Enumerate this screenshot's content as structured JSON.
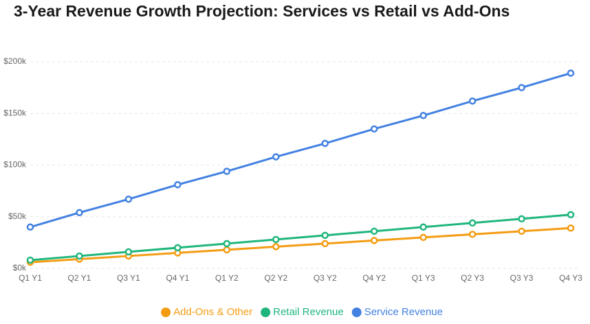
{
  "chart_data": {
    "type": "line",
    "title": "3-Year Revenue Growth Projection: Services vs Retail vs Add-Ons",
    "categories": [
      "Q1 Y1",
      "Q2 Y1",
      "Q3 Y1",
      "Q4 Y1",
      "Q1 Y2",
      "Q2 Y2",
      "Q3 Y2",
      "Q4 Y2",
      "Q1 Y3",
      "Q2 Y3",
      "Q3 Y3",
      "Q4 Y3"
    ],
    "series": [
      {
        "name": "Add-Ons & Other",
        "color": "#f39c12",
        "values": [
          6,
          9,
          12,
          15,
          18,
          21,
          24,
          27,
          30,
          33,
          36,
          39
        ]
      },
      {
        "name": "Retail Revenue",
        "color": "#1fb67d",
        "values": [
          8,
          12,
          16,
          20,
          24,
          28,
          32,
          36,
          40,
          44,
          48,
          52
        ]
      },
      {
        "name": "Service Revenue",
        "color": "#4281e2",
        "values": [
          40,
          54,
          67,
          81,
          94,
          108,
          121,
          135,
          148,
          162,
          175,
          189
        ]
      }
    ],
    "ylim": [
      0,
      200
    ],
    "yticks": [
      {
        "value": 0,
        "label": "$0k"
      },
      {
        "value": 50,
        "label": "$50k"
      },
      {
        "value": 100,
        "label": "$100k"
      },
      {
        "value": 150,
        "label": "$150k"
      },
      {
        "value": 200,
        "label": "$200k"
      }
    ],
    "grid": true,
    "legend": "bottom"
  }
}
